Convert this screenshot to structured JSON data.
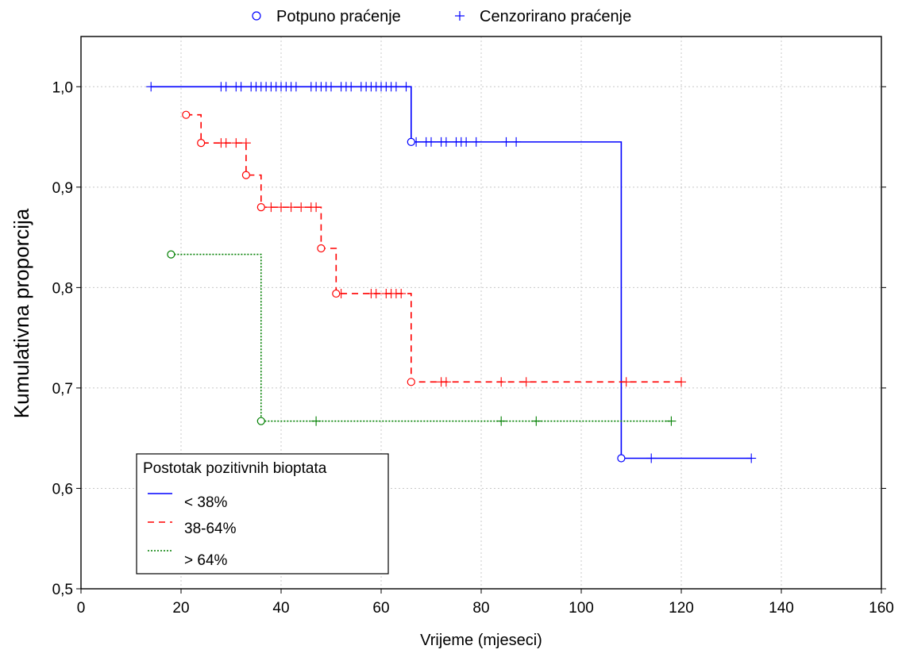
{
  "chart_data": {
    "type": "line",
    "subtype": "kaplan-meier-step",
    "xlabel": "Vrijeme (mjeseci)",
    "ylabel": "Kumulativna proporcija",
    "xlim": [
      0,
      160
    ],
    "ylim": [
      0.5,
      1.05
    ],
    "x_ticks": [
      0,
      20,
      40,
      60,
      80,
      100,
      120,
      140,
      160
    ],
    "x_tick_labels": [
      "0",
      "20",
      "40",
      "60",
      "80",
      "100",
      "120",
      "140",
      "160"
    ],
    "y_ticks": [
      0.5,
      0.6,
      0.7,
      0.8,
      0.9,
      1.0
    ],
    "y_tick_labels": [
      "0,5",
      "0,6",
      "0,7",
      "0,8",
      "0,9",
      "1,0"
    ],
    "grid": true,
    "marker_legend": {
      "placement": "top-center",
      "items": [
        {
          "symbol": "circle",
          "label": "Potpuno praćenje"
        },
        {
          "symbol": "plus",
          "label": "Cenzorirano praćenje"
        }
      ]
    },
    "group_legend": {
      "placement": "bottom-left",
      "title": "Postotak pozitivnih bioptata"
    },
    "series": [
      {
        "name": "< 38%",
        "color": "#0000ff",
        "line_style": "solid",
        "steps": [
          [
            14,
            1.0
          ],
          [
            66,
            0.945
          ],
          [
            108,
            0.63
          ],
          [
            134,
            0.63
          ]
        ],
        "events": [
          [
            66,
            0.945
          ],
          [
            108,
            0.63
          ]
        ],
        "censored": [
          [
            14,
            1.0
          ],
          [
            28,
            1.0
          ],
          [
            29,
            1.0
          ],
          [
            31,
            1.0
          ],
          [
            32,
            1.0
          ],
          [
            34,
            1.0
          ],
          [
            35,
            1.0
          ],
          [
            36,
            1.0
          ],
          [
            37,
            1.0
          ],
          [
            38,
            1.0
          ],
          [
            39,
            1.0
          ],
          [
            40,
            1.0
          ],
          [
            41,
            1.0
          ],
          [
            42,
            1.0
          ],
          [
            43,
            1.0
          ],
          [
            46,
            1.0
          ],
          [
            47,
            1.0
          ],
          [
            48,
            1.0
          ],
          [
            49,
            1.0
          ],
          [
            50,
            1.0
          ],
          [
            52,
            1.0
          ],
          [
            53,
            1.0
          ],
          [
            54,
            1.0
          ],
          [
            56,
            1.0
          ],
          [
            57,
            1.0
          ],
          [
            58,
            1.0
          ],
          [
            59,
            1.0
          ],
          [
            60,
            1.0
          ],
          [
            61,
            1.0
          ],
          [
            62,
            1.0
          ],
          [
            63,
            1.0
          ],
          [
            65,
            1.0
          ],
          [
            67,
            0.945
          ],
          [
            69,
            0.945
          ],
          [
            70,
            0.945
          ],
          [
            72,
            0.945
          ],
          [
            73,
            0.945
          ],
          [
            75,
            0.945
          ],
          [
            76,
            0.945
          ],
          [
            77,
            0.945
          ],
          [
            79,
            0.945
          ],
          [
            85,
            0.945
          ],
          [
            87,
            0.945
          ],
          [
            114,
            0.63
          ],
          [
            134,
            0.63
          ]
        ]
      },
      {
        "name": "38-64%",
        "color": "#ff0000",
        "line_style": "dashed",
        "steps": [
          [
            21,
            0.972
          ],
          [
            24,
            0.944
          ],
          [
            33,
            0.912
          ],
          [
            36,
            0.88
          ],
          [
            48,
            0.839
          ],
          [
            51,
            0.794
          ],
          [
            66,
            0.706
          ],
          [
            120,
            0.706
          ]
        ],
        "events": [
          [
            21,
            0.972
          ],
          [
            24,
            0.944
          ],
          [
            33,
            0.912
          ],
          [
            36,
            0.88
          ],
          [
            48,
            0.839
          ],
          [
            51,
            0.794
          ],
          [
            66,
            0.706
          ]
        ],
        "censored": [
          [
            28,
            0.944
          ],
          [
            29,
            0.944
          ],
          [
            31,
            0.944
          ],
          [
            33,
            0.944
          ],
          [
            38,
            0.88
          ],
          [
            40,
            0.88
          ],
          [
            42,
            0.88
          ],
          [
            44,
            0.88
          ],
          [
            46,
            0.88
          ],
          [
            47,
            0.88
          ],
          [
            52,
            0.794
          ],
          [
            58,
            0.794
          ],
          [
            59,
            0.794
          ],
          [
            61,
            0.794
          ],
          [
            62,
            0.794
          ],
          [
            63,
            0.794
          ],
          [
            64,
            0.794
          ],
          [
            72,
            0.706
          ],
          [
            73,
            0.706
          ],
          [
            84,
            0.706
          ],
          [
            89,
            0.706
          ],
          [
            109,
            0.706
          ],
          [
            120,
            0.706
          ]
        ]
      },
      {
        "name": "> 64%",
        "color": "#007f00",
        "line_style": "dotted",
        "steps": [
          [
            18,
            0.833
          ],
          [
            36,
            0.667
          ],
          [
            118,
            0.667
          ]
        ],
        "events": [
          [
            18,
            0.833
          ],
          [
            36,
            0.667
          ]
        ],
        "censored": [
          [
            47,
            0.667
          ],
          [
            84,
            0.667
          ],
          [
            91,
            0.667
          ],
          [
            118,
            0.667
          ]
        ]
      }
    ]
  }
}
